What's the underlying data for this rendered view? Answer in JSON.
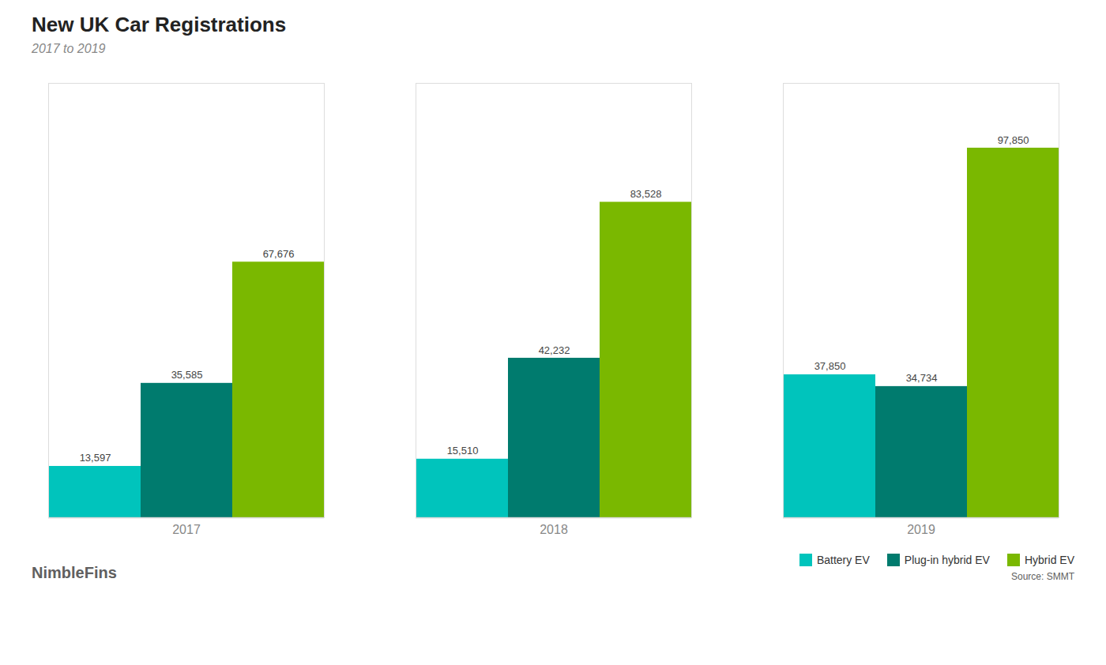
{
  "chart_data": {
    "type": "bar",
    "title": "New UK Car Registrations",
    "subtitle": "2017 to 2019",
    "categories": [
      "2017",
      "2018",
      "2019"
    ],
    "series": [
      {
        "name": "Battery EV",
        "color": "#00C4BC",
        "values": [
          13597,
          15510,
          37850
        ],
        "value_labels": [
          "13,597",
          "15,510",
          "37,850"
        ]
      },
      {
        "name": "Plug-in hybrid EV",
        "color": "#007B6E",
        "values": [
          35585,
          42232,
          34734
        ],
        "value_labels": [
          "35,585",
          "42,232",
          "34,734"
        ]
      },
      {
        "name": "Hybrid EV",
        "color": "#7AB800",
        "values": [
          67676,
          83528,
          97850
        ],
        "value_labels": [
          "67,676",
          "83,528",
          "97,850"
        ]
      }
    ],
    "ylim": [
      0,
      115000
    ],
    "yticks": [],
    "tick_labels": "x",
    "grid": false,
    "data_labels": true,
    "legend": "lower right",
    "annotations": [
      "Source: SMMT",
      "NimbleFins"
    ]
  }
}
